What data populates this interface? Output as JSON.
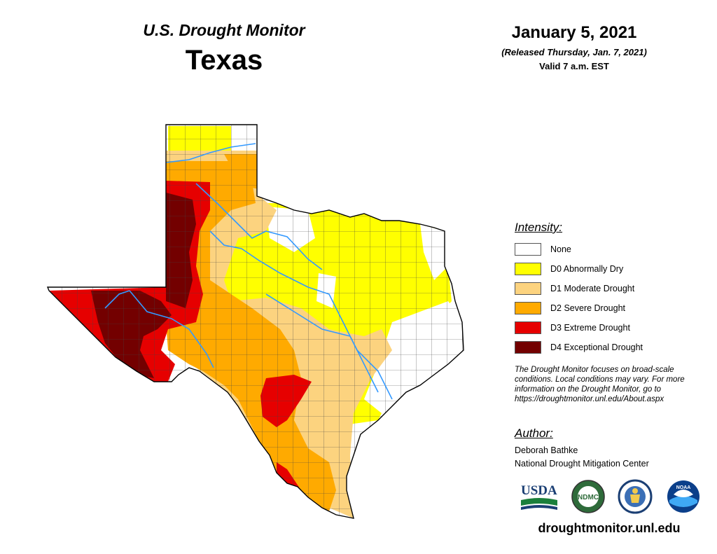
{
  "header": {
    "title": "U.S. Drought Monitor",
    "state": "Texas",
    "date": "January 5, 2021",
    "released": "(Released Thursday, Jan. 7, 2021)",
    "valid": "Valid 7 a.m. EST"
  },
  "legend": {
    "title": "Intensity:",
    "items": [
      {
        "label": "None",
        "color": "#ffffff"
      },
      {
        "label": "D0 Abnormally Dry",
        "color": "#ffff00"
      },
      {
        "label": "D1 Moderate Drought",
        "color": "#fcd37f"
      },
      {
        "label": "D2 Severe Drought",
        "color": "#ffaa00"
      },
      {
        "label": "D3 Extreme Drought",
        "color": "#e60000"
      },
      {
        "label": "D4 Exceptional Drought",
        "color": "#730000"
      }
    ]
  },
  "note": {
    "line1": "The Drought Monitor focuses on broad-scale",
    "line2": "conditions. Local conditions may vary. For more",
    "line3": "information on the Drought Monitor, go to",
    "line4": "https://droughtmonitor.unl.edu/About.aspx"
  },
  "author": {
    "title": "Author:",
    "name": "Deborah Bathke",
    "org": "National Drought Mitigation Center"
  },
  "logos": [
    {
      "name": "usda-logo",
      "text": "USDA"
    },
    {
      "name": "ndmc-logo",
      "text": "NDMC"
    },
    {
      "name": "commerce-seal"
    },
    {
      "name": "noaa-logo",
      "text": "NOAA"
    }
  ],
  "footer": {
    "url": "droughtmonitor.unl.edu"
  },
  "map": {
    "river_color": "#3399ff",
    "county_line_color": "#444444",
    "outline_color": "#000000"
  }
}
